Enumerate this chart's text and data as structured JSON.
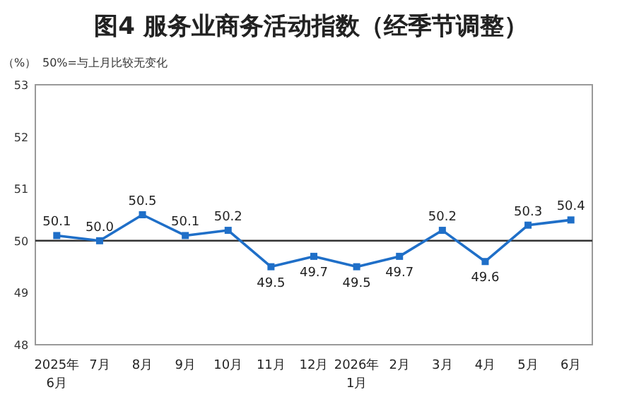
{
  "chart_data": {
    "type": "line",
    "title": "图4  服务业商务活动指数（经季节调整）",
    "ylabel": "（%）",
    "annotations": [
      "50%=与上月比较无变化"
    ],
    "categories": [
      "2025年\n6月",
      "7月",
      "8月",
      "9月",
      "10月",
      "11月",
      "12月",
      "2026年\n1月",
      "2月",
      "3月",
      "4月",
      "5月",
      "6月"
    ],
    "series": [
      {
        "color": "#1f6fc8",
        "values": [
          50.1,
          50.0,
          50.5,
          50.1,
          50.2,
          49.5,
          49.7,
          49.5,
          49.7,
          50.2,
          49.6,
          50.3,
          50.4
        ],
        "value_labels": [
          "50.1",
          "50.0",
          "50.5",
          "50.1",
          "50.2",
          "49.5",
          "49.7",
          "49.5",
          "49.7",
          "50.2",
          "49.6",
          "50.3",
          "50.4"
        ]
      }
    ],
    "ylim": [
      48,
      53
    ],
    "yticks": [
      48,
      49,
      50,
      51,
      52,
      53
    ],
    "ref_lines": [
      {
        "axis": "y",
        "value": 50,
        "color": "#333333"
      }
    ],
    "marker": "square",
    "line_style": "solid",
    "grid": false
  }
}
